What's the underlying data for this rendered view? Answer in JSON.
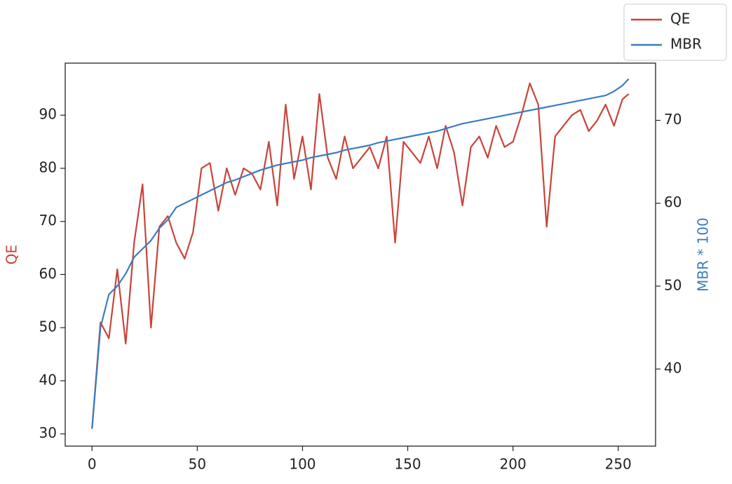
{
  "chart_data": {
    "type": "line",
    "x": [
      0,
      4,
      8,
      12,
      16,
      20,
      24,
      28,
      32,
      36,
      40,
      44,
      48,
      52,
      56,
      60,
      64,
      68,
      72,
      76,
      80,
      84,
      88,
      92,
      96,
      100,
      104,
      108,
      112,
      116,
      120,
      124,
      128,
      132,
      136,
      140,
      144,
      148,
      152,
      156,
      160,
      164,
      168,
      172,
      176,
      180,
      184,
      188,
      192,
      196,
      200,
      204,
      208,
      212,
      216,
      220,
      224,
      228,
      232,
      236,
      240,
      244,
      248,
      252,
      255
    ],
    "series": [
      {
        "name": "QE",
        "color": "#c8443a",
        "axis": "y",
        "values": [
          31,
          51,
          48,
          61,
          47,
          66,
          77,
          50,
          69,
          71,
          66,
          63,
          68,
          80,
          81,
          72,
          80,
          75,
          80,
          79,
          76,
          85,
          73,
          92,
          78,
          86,
          76,
          94,
          82,
          78,
          86,
          80,
          82,
          84,
          80,
          86,
          66,
          85,
          83,
          81,
          86,
          80,
          88,
          83,
          73,
          84,
          86,
          82,
          88,
          84,
          85,
          90,
          96,
          92,
          69,
          86,
          88,
          90,
          91,
          87,
          89,
          92,
          88,
          93,
          94
        ]
      },
      {
        "name": "MBR",
        "color": "#3a7dc0",
        "axis": "y2",
        "values": [
          32.8,
          45,
          49,
          50,
          51.5,
          53.5,
          54.5,
          55.5,
          57,
          58,
          59.5,
          60,
          60.5,
          61,
          61.5,
          62,
          62.5,
          62.8,
          63.2,
          63.6,
          64,
          64.3,
          64.6,
          64.8,
          65,
          65.2,
          65.5,
          65.7,
          65.9,
          66.1,
          66.4,
          66.6,
          66.8,
          67,
          67.3,
          67.5,
          67.7,
          67.9,
          68.1,
          68.3,
          68.5,
          68.7,
          69,
          69.3,
          69.6,
          69.8,
          70,
          70.2,
          70.4,
          70.6,
          70.8,
          71,
          71.2,
          71.4,
          71.6,
          71.8,
          72,
          72.2,
          72.4,
          72.6,
          72.8,
          73,
          73.5,
          74.2,
          75
        ]
      }
    ],
    "ylabel": "QE",
    "y2label": "MBR * 100",
    "xlim": [
      -12.75,
      267.75
    ],
    "xticks": [
      0,
      50,
      100,
      150,
      200,
      250
    ],
    "ylim": [
      27.7,
      99.8
    ],
    "yticks": [
      30,
      40,
      50,
      60,
      70,
      80,
      90
    ],
    "y2lim": [
      30.7,
      76.9
    ],
    "y2ticks": [
      40,
      50,
      60,
      70
    ],
    "legend": "upper right"
  }
}
